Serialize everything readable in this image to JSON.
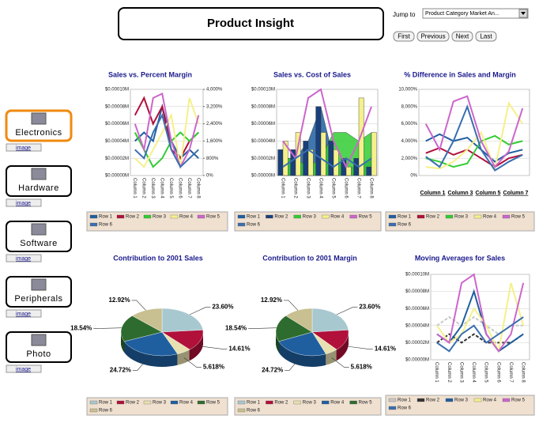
{
  "header": {
    "title": "Product Insight",
    "jump_label": "Jump to",
    "jump_value": "Product Category Market An...",
    "buttons": [
      "First",
      "Previous",
      "Next",
      "Last"
    ]
  },
  "sidebar": {
    "link_label": "image",
    "items": [
      "Electronics",
      "Hardware",
      "Software",
      "Peripherals",
      "Photo"
    ]
  },
  "chart_data": [
    {
      "type": "line",
      "title": "Sales vs. Percent Margin",
      "categories": [
        "Column 1",
        "Column 2",
        "Column 3",
        "Column 4",
        "Column 5",
        "Column 6",
        "Column 7",
        "Column 8"
      ],
      "ylim": [
        0,
        0.0001
      ],
      "yticks": [
        {
          "value": 0,
          "label": "$0.00000M"
        },
        {
          "value": 2e-05,
          "label": "$0.00002M"
        },
        {
          "value": 4e-05,
          "label": "$0.00004M"
        },
        {
          "value": 6e-05,
          "label": "$0.00006M"
        },
        {
          "value": 8e-05,
          "label": "$0.00008M"
        },
        {
          "value": 0.0001,
          "label": "$0.00010M"
        }
      ],
      "y2lim": [
        0,
        4000
      ],
      "y2ticks": [
        {
          "value": 0,
          "label": "0%"
        },
        {
          "value": 800,
          "label": "800%"
        },
        {
          "value": 1600,
          "label": "1,600%"
        },
        {
          "value": 2400,
          "label": "2,400%"
        },
        {
          "value": 3200,
          "label": "3,200%"
        },
        {
          "value": 4000,
          "label": "4,000%"
        }
      ],
      "series": [
        {
          "name": "Row 1",
          "color": "#1f5fa0",
          "values": [
            4e-05,
            5e-05,
            4e-05,
            8e-05,
            4e-05,
            2e-05,
            3e-05,
            2e-05
          ]
        },
        {
          "name": "Row 2",
          "color": "#b0103a",
          "values": [
            7e-05,
            9e-05,
            6e-05,
            8e-05,
            3e-05,
            2e-05,
            4e-05,
            5e-05
          ]
        },
        {
          "name": "Row 3",
          "color": "#33cc33",
          "axis": "y2",
          "values": [
            2000,
            1200,
            400,
            800,
            1600,
            2000,
            1600,
            2000
          ]
        },
        {
          "name": "Row 4",
          "color": "#f5f08a",
          "axis": "y2",
          "values": [
            800,
            400,
            1200,
            2000,
            2800,
            400,
            3600,
            2400
          ]
        },
        {
          "name": "Row 5",
          "color": "#cc66cc",
          "axis": "y2",
          "values": [
            2400,
            1200,
            3600,
            3800,
            1600,
            400,
            1200,
            2800
          ]
        },
        {
          "name": "Row 6",
          "color": "#3a6fb0",
          "values": [
            3e-05,
            2e-05,
            5e-05,
            7e-05,
            3e-05,
            1e-05,
            2e-05,
            3e-05
          ]
        }
      ]
    },
    {
      "type": "combo",
      "title": "Sales vs. Cost of Sales",
      "categories": [
        "Column 1",
        "Column 2",
        "Column 3",
        "Column 4",
        "Column 5",
        "Column 6",
        "Column 7",
        "Column 8"
      ],
      "ylim": [
        0,
        0.0001
      ],
      "yticks": [
        {
          "value": 0,
          "label": "$0.00000M"
        },
        {
          "value": 2e-05,
          "label": "$0.00002M"
        },
        {
          "value": 4e-05,
          "label": "$0.00004M"
        },
        {
          "value": 6e-05,
          "label": "$0.00006M"
        },
        {
          "value": 8e-05,
          "label": "$0.00008M"
        },
        {
          "value": 0.0001,
          "label": "$0.00010M"
        }
      ],
      "series": [
        {
          "name": "Row 1",
          "color": "#1f5fa0",
          "kind": "area",
          "values": [
            2e-05,
            2e-05,
            4e-05,
            8e-05,
            2e-05,
            1e-05,
            1e-05,
            2e-05
          ]
        },
        {
          "name": "Row 2",
          "color": "#1a3f7a",
          "kind": "bar",
          "values": [
            3e-05,
            3e-05,
            4e-05,
            8e-05,
            4e-05,
            2e-05,
            2e-05,
            1e-05
          ]
        },
        {
          "name": "Row 3",
          "color": "#33cc33",
          "kind": "area",
          "values": [
            2e-05,
            2e-05,
            1e-05,
            2e-05,
            5e-05,
            5e-05,
            4e-05,
            5e-05
          ]
        },
        {
          "name": "Row 4",
          "color": "#f5f08a",
          "kind": "bar",
          "values": [
            4e-05,
            5e-05,
            3e-05,
            5e-05,
            3e-05,
            1e-05,
            9e-05,
            5e-05
          ]
        },
        {
          "name": "Row 5",
          "color": "#cc66cc",
          "kind": "line",
          "values": [
            4e-05,
            2e-05,
            9e-05,
            0.0001,
            4e-05,
            1e-05,
            4e-05,
            8e-05
          ]
        },
        {
          "name": "Row 6",
          "color": "#3a6fb0",
          "kind": "line",
          "values": [
            1e-05,
            2e-05,
            3e-05,
            2e-05,
            1e-05,
            2e-05,
            1e-05,
            2e-05
          ]
        }
      ]
    },
    {
      "type": "line",
      "title": "% Difference in Sales and Margin",
      "categories": [
        "Column 1",
        null,
        "Column 3",
        null,
        "Column 5",
        null,
        "Column 7",
        null
      ],
      "ylim": [
        0,
        10000
      ],
      "yticks": [
        {
          "value": 0,
          "label": "0%"
        },
        {
          "value": 2000,
          "label": "2,000%"
        },
        {
          "value": 4000,
          "label": "4,000%"
        },
        {
          "value": 6000,
          "label": "6,000%"
        },
        {
          "value": 8000,
          "label": "8,000%"
        },
        {
          "value": 10000,
          "label": "10,000%"
        }
      ],
      "series": [
        {
          "name": "Row 1",
          "color": "#1f5fa0",
          "values": [
            4000,
            4800,
            4000,
            4400,
            3000,
            1600,
            2600,
            3000
          ]
        },
        {
          "name": "Row 2",
          "color": "#b0103a",
          "values": [
            2600,
            3200,
            2400,
            3000,
            2000,
            1000,
            2000,
            2400
          ]
        },
        {
          "name": "Row 3",
          "color": "#33cc33",
          "values": [
            2000,
            1600,
            1000,
            1400,
            4000,
            4600,
            3600,
            4000
          ]
        },
        {
          "name": "Row 4",
          "color": "#f5f08a",
          "values": [
            1000,
            800,
            1600,
            3000,
            5000,
            800,
            8400,
            6000
          ]
        },
        {
          "name": "Row 5",
          "color": "#cc66cc",
          "values": [
            6000,
            3000,
            8600,
            9200,
            4000,
            1000,
            2800,
            7800
          ]
        },
        {
          "name": "Row 6",
          "color": "#3a6fb0",
          "values": [
            2200,
            1000,
            4000,
            8000,
            3000,
            600,
            1600,
            2400
          ]
        }
      ]
    },
    {
      "type": "pie",
      "title": "Contribution to 2001 Sales",
      "categories": [
        "Row 1",
        "Row 2",
        "Row 3",
        "Row 4",
        "Row 5",
        "Row 6"
      ],
      "values": [
        23.6,
        14.61,
        5.618,
        24.72,
        18.54,
        12.92
      ],
      "value_labels": [
        "23.60%",
        "14.61%",
        "5.618%",
        "24.72%",
        "18.54%",
        "12.92%"
      ],
      "colors": [
        "#a8c8d0",
        "#b0103a",
        "#e8e0b0",
        "#1f5fa0",
        "#2e6b2e",
        "#c8c090"
      ]
    },
    {
      "type": "pie",
      "title": "Contribution to 2001 Margin",
      "categories": [
        "Row 1",
        "Row 2",
        "Row 3",
        "Row 4",
        "Row 5",
        "Row 6"
      ],
      "values": [
        23.6,
        14.61,
        5.618,
        24.72,
        18.54,
        12.92
      ],
      "value_labels": [
        "23.60%",
        "14.61%",
        "5.618%",
        "24.72%",
        "18.54%",
        "12.92%"
      ],
      "colors": [
        "#a8c8d0",
        "#b0103a",
        "#e8e0b0",
        "#1f5fa0",
        "#2e6b2e",
        "#c8c090"
      ]
    },
    {
      "type": "line",
      "title": "Moving Averages for Sales",
      "categories": [
        "Column 1",
        "Column 2",
        "Column 3",
        "Column 4",
        "Column 5",
        "Column 6",
        "Column 7",
        "Column 8"
      ],
      "ylim": [
        0,
        0.0001
      ],
      "yticks": [
        {
          "value": 0,
          "label": "$0.00000M"
        },
        {
          "value": 2e-05,
          "label": "$0.00002M"
        },
        {
          "value": 4e-05,
          "label": "$0.00004M"
        },
        {
          "value": 6e-05,
          "label": "$0.00006M"
        },
        {
          "value": 8e-05,
          "label": "$0.00008M"
        },
        {
          "value": 0.0001,
          "label": "$0.00010M"
        }
      ],
      "series": [
        {
          "name": "Row 1",
          "color": "#c8c8c8",
          "dashed": true,
          "values": [
            4e-05,
            5e-05,
            4e-05,
            5e-05,
            4e-05,
            3e-05,
            4e-05,
            4e-05
          ]
        },
        {
          "name": "Row 2",
          "color": "#333333",
          "dashed": true,
          "values": [
            2e-05,
            3e-05,
            2e-05,
            3e-05,
            2e-05,
            2e-05,
            2e-05,
            3e-05
          ]
        },
        {
          "name": "Row 3",
          "color": "#1f5fa0",
          "values": [
            3e-05,
            2e-05,
            4e-05,
            8e-05,
            3e-05,
            1e-05,
            2e-05,
            3e-05
          ]
        },
        {
          "name": "Row 4",
          "color": "#f5f08a",
          "values": [
            4e-05,
            2e-05,
            3e-05,
            6e-05,
            4e-05,
            1e-05,
            9e-05,
            4e-05
          ]
        },
        {
          "name": "Row 5",
          "color": "#cc66cc",
          "values": [
            3e-05,
            2e-05,
            9e-05,
            0.0001,
            3e-05,
            1e-05,
            3e-05,
            9e-05
          ]
        },
        {
          "name": "Row 6",
          "color": "#3a6fb0",
          "values": [
            2e-05,
            1e-05,
            3e-05,
            4e-05,
            2e-05,
            3e-05,
            4e-05,
            5e-05
          ]
        }
      ]
    }
  ]
}
